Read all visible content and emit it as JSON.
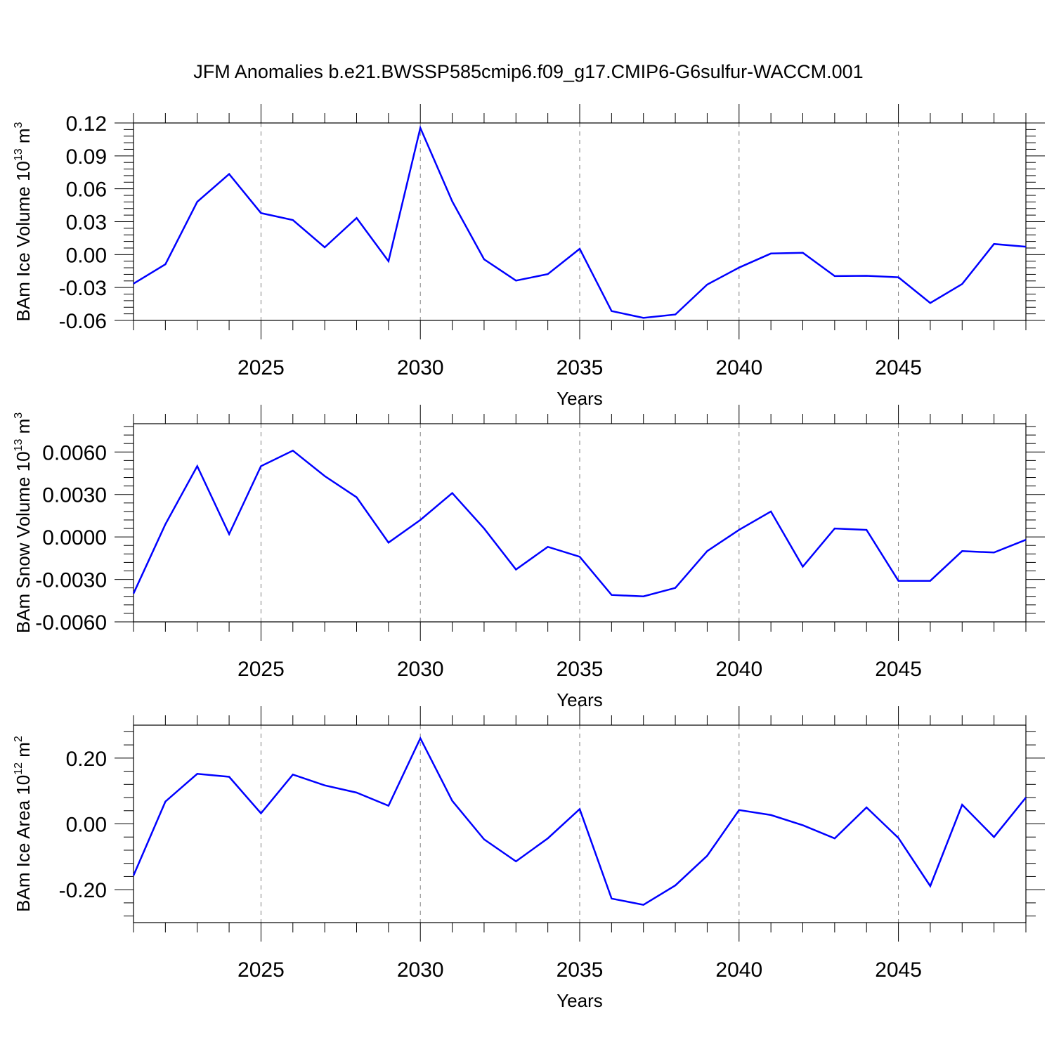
{
  "figure": {
    "title": "JFM Anomalies b.e21.BWSSP585cmip6.f09_g17.CMIP6-G6sulfur-WACCM.001"
  },
  "colors": {
    "line": "#0000ff",
    "axis": "#000000",
    "grid": "#808080",
    "background": "#ffffff"
  },
  "chart_data": [
    {
      "type": "line",
      "ylabel": {
        "text": "BAm Ice Volume 10",
        "sup": "13",
        "unit": " m",
        "unit_sup": "3"
      },
      "xlabel": "Years",
      "xlim": [
        2021,
        2049
      ],
      "ylim": [
        -0.06,
        0.12
      ],
      "yticks": [
        "0.12",
        "0.09",
        "0.06",
        "0.03",
        "0.00",
        "-0.03",
        "-0.06"
      ],
      "ytick_values": [
        0.12,
        0.09,
        0.06,
        0.03,
        0.0,
        -0.03,
        -0.06
      ],
      "xticks": [
        "2025",
        "2030",
        "2035",
        "2040",
        "2045"
      ],
      "xtick_values": [
        2025,
        2030,
        2035,
        2040,
        2045
      ],
      "grid": "x dashed",
      "x": [
        2021,
        2022,
        2023,
        2024,
        2025,
        2026,
        2027,
        2028,
        2029,
        2030,
        2031,
        2032,
        2033,
        2034,
        2035,
        2036,
        2037,
        2038,
        2039,
        2040,
        2041,
        2042,
        2043,
        2044,
        2045,
        2046,
        2047,
        2048,
        2049
      ],
      "values": [
        -0.0265,
        -0.0088,
        0.0481,
        0.0734,
        0.0379,
        0.0315,
        0.0066,
        0.0334,
        -0.006,
        0.1155,
        0.0485,
        -0.0043,
        -0.0237,
        -0.0178,
        0.0053,
        -0.0515,
        -0.0577,
        -0.0546,
        -0.0273,
        -0.0118,
        0.001,
        0.0017,
        -0.0196,
        -0.0193,
        -0.0207,
        -0.0441,
        -0.0268,
        0.0097,
        0.0072
      ]
    },
    {
      "type": "line",
      "ylabel": {
        "text": "BAm Snow Volume 10",
        "sup": "13",
        "unit": " m",
        "unit_sup": "3"
      },
      "xlabel": "Years",
      "xlim": [
        2021,
        2049
      ],
      "ylim": [
        -0.006,
        0.008
      ],
      "yticks": [
        "0.0060",
        "0.0030",
        "0.0000",
        "-0.0030",
        "-0.0060"
      ],
      "ytick_values": [
        0.006,
        0.003,
        0.0,
        -0.003,
        -0.006
      ],
      "xticks": [
        "2025",
        "2030",
        "2035",
        "2040",
        "2045"
      ],
      "xtick_values": [
        2025,
        2030,
        2035,
        2040,
        2045
      ],
      "grid": "x dashed",
      "x": [
        2021,
        2022,
        2023,
        2024,
        2025,
        2026,
        2027,
        2028,
        2029,
        2030,
        2031,
        2032,
        2033,
        2034,
        2035,
        2036,
        2037,
        2038,
        2039,
        2040,
        2041,
        2042,
        2043,
        2044,
        2045,
        2046,
        2047,
        2048,
        2049
      ],
      "values": [
        -0.004,
        0.0009,
        0.005,
        0.0002,
        0.005,
        0.0061,
        0.0043,
        0.0028,
        -0.0004,
        0.0012,
        0.0031,
        0.0006,
        -0.0023,
        -0.0007,
        -0.0014,
        -0.0041,
        -0.0042,
        -0.0036,
        -0.001,
        0.0005,
        0.0018,
        -0.0021,
        0.0006,
        0.0005,
        -0.0031,
        -0.0031,
        -0.001,
        -0.0011,
        -0.0002
      ]
    },
    {
      "type": "line",
      "ylabel": {
        "text": "BAm Ice Area 10",
        "sup": "12",
        "unit": " m",
        "unit_sup": "2"
      },
      "xlabel": "Years",
      "xlim": [
        2021,
        2049
      ],
      "ylim": [
        -0.3,
        0.3
      ],
      "yticks": [
        "0.20",
        "0.00",
        "-0.20"
      ],
      "ytick_values": [
        0.2,
        0.0,
        -0.2
      ],
      "xticks": [
        "2025",
        "2030",
        "2035",
        "2040",
        "2045"
      ],
      "xtick_values": [
        2025,
        2030,
        2035,
        2040,
        2045
      ],
      "grid": "x dashed",
      "x": [
        2021,
        2022,
        2023,
        2024,
        2025,
        2026,
        2027,
        2028,
        2029,
        2030,
        2031,
        2032,
        2033,
        2034,
        2035,
        2036,
        2037,
        2038,
        2039,
        2040,
        2041,
        2042,
        2043,
        2044,
        2045,
        2046,
        2047,
        2048,
        2049
      ],
      "values": [
        -0.157,
        0.068,
        0.152,
        0.143,
        0.032,
        0.15,
        0.117,
        0.095,
        0.055,
        0.26,
        0.07,
        -0.047,
        -0.114,
        -0.044,
        0.045,
        -0.227,
        -0.246,
        -0.187,
        -0.097,
        0.042,
        0.027,
        -0.004,
        -0.044,
        0.05,
        -0.043,
        -0.189,
        0.058,
        -0.04,
        0.08
      ]
    }
  ]
}
